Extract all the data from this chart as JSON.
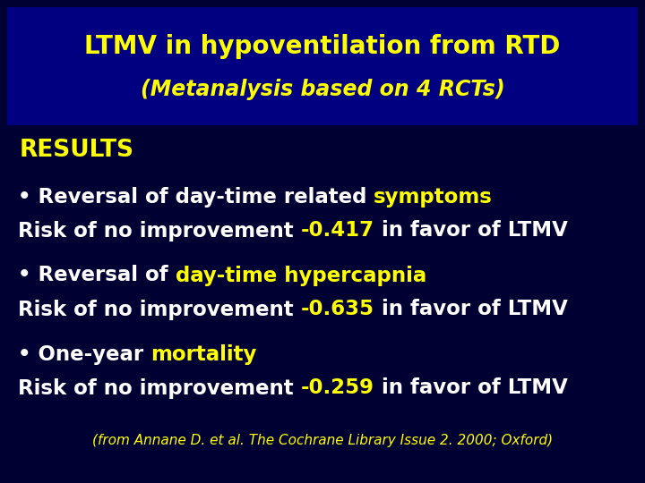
{
  "bg_color": "#000033",
  "title_box_color": "#000080",
  "title_line1": "LTMV in hypoventilation from RTD",
  "title_line2": "(Metanalysis based on 4 RCTs)",
  "title_color": "#FFFF00",
  "results_label": "RESULTS",
  "results_color": "#FFFF00",
  "white": "#FFFFFF",
  "yellow": "#FFFF00",
  "footer": "(from Annane D. et al. The Cochrane Library Issue 2. 2000; Oxford)",
  "footer_color": "#FFFF00",
  "fig_width": 7.2,
  "fig_height": 5.4,
  "dpi": 100
}
